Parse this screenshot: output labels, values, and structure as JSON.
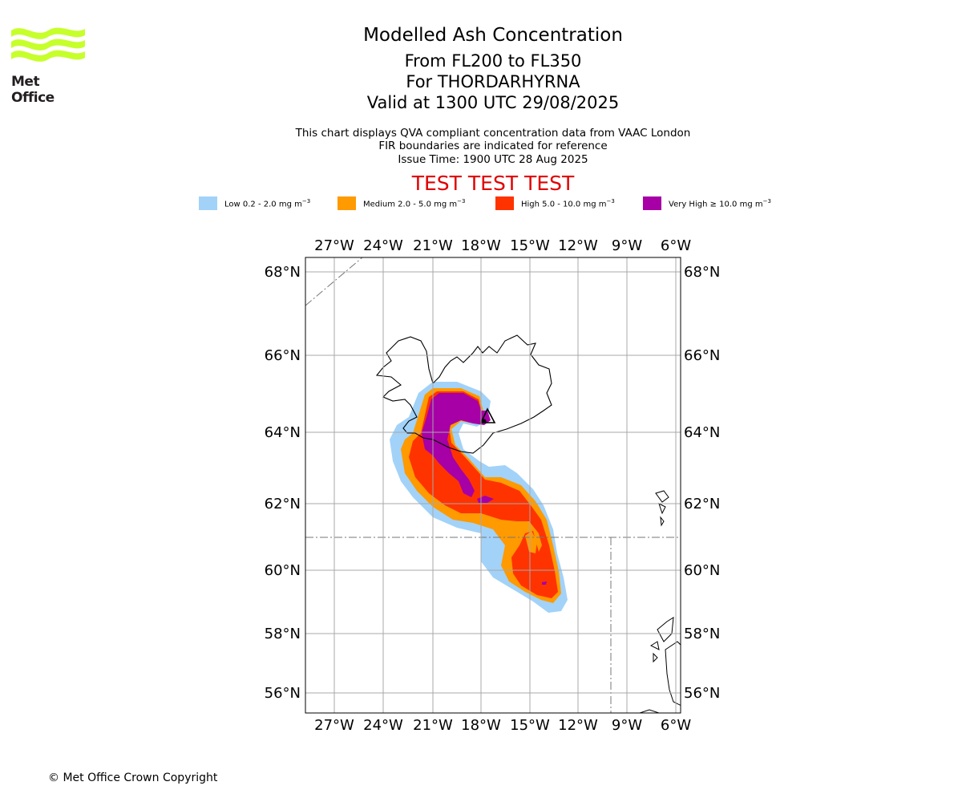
{
  "branding": {
    "logo_text": "Met Office",
    "logo_color": "#c6ff2a"
  },
  "header": {
    "title": "Modelled Ash Concentration",
    "levels": "From FL200 to FL350",
    "volcano": "For THORDARHYRNA",
    "valid": "Valid at 1300 UTC 29/08/2025",
    "info_line1": "This chart displays QVA compliant concentration data from VAAC London",
    "info_line2": "FIR boundaries are indicated for reference",
    "info_line3": "Issue Time: 1900 UTC 28 Aug 2025",
    "test_banner": "TEST TEST TEST",
    "test_color": "#e00000"
  },
  "legend": [
    {
      "label": "Low 0.2 - 2.0 mg m",
      "exp": "−3",
      "color": "#a2d2f8"
    },
    {
      "label": "Medium 2.0 - 5.0 mg m",
      "exp": "−3",
      "color": "#ff9a00"
    },
    {
      "label": "High 5.0 - 10.0 mg m",
      "exp": "−3",
      "color": "#ff3300"
    },
    {
      "label": "Very High  ≥  10.0 mg m",
      "exp": "−3",
      "color": "#a600a6"
    }
  ],
  "map": {
    "lon_ticks": [
      "27°W",
      "24°W",
      "21°W",
      "18°W",
      "15°W",
      "12°W",
      "9°W",
      "6°W"
    ],
    "lat_ticks": [
      "68°N",
      "66°N",
      "64°N",
      "62°N",
      "60°N",
      "58°N",
      "56°N"
    ],
    "volcano_icon": "volcano-triangle-icon"
  },
  "footer": {
    "copyright": "© Met Office Crown Copyright"
  }
}
